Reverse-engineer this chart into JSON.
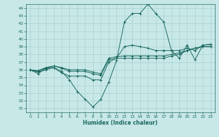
{
  "xlabel": "Humidex (Indice chaleur)",
  "background_color": "#c8e8e8",
  "grid_color": "#a8d0d0",
  "line_color": "#1a6860",
  "xlim": [
    -0.5,
    23.5
  ],
  "ylim": [
    30.5,
    44.5
  ],
  "xticks": [
    0,
    1,
    2,
    3,
    4,
    5,
    6,
    7,
    8,
    9,
    10,
    11,
    12,
    13,
    14,
    15,
    16,
    17,
    18,
    19,
    20,
    21,
    22,
    23
  ],
  "yticks": [
    31,
    32,
    33,
    34,
    35,
    36,
    37,
    38,
    39,
    40,
    41,
    42,
    43,
    44
  ],
  "series": [
    [
      36.0,
      35.5,
      36.2,
      36.3,
      35.8,
      34.7,
      33.2,
      32.2,
      31.2,
      32.2,
      34.4,
      37.2,
      42.2,
      43.3,
      43.3,
      44.5,
      43.3,
      42.2,
      38.5,
      37.5,
      39.2,
      37.3,
      39.2,
      39.3
    ],
    [
      36.0,
      35.7,
      36.0,
      36.3,
      35.6,
      35.2,
      35.2,
      35.2,
      34.7,
      34.7,
      37.0,
      37.5,
      39.0,
      39.2,
      39.0,
      38.8,
      38.5,
      38.5,
      38.5,
      38.5,
      38.8,
      38.5,
      39.2,
      39.3
    ],
    [
      36.0,
      35.8,
      36.2,
      36.5,
      36.2,
      35.8,
      35.8,
      35.8,
      35.5,
      35.3,
      37.3,
      37.5,
      37.5,
      37.5,
      37.5,
      37.5,
      37.5,
      37.5,
      37.8,
      38.0,
      38.5,
      38.8,
      39.0,
      39.0
    ],
    [
      36.0,
      35.9,
      36.3,
      36.5,
      36.3,
      36.0,
      36.0,
      36.0,
      35.7,
      35.5,
      37.5,
      37.7,
      37.8,
      37.8,
      37.8,
      37.8,
      37.8,
      37.8,
      38.0,
      38.2,
      38.5,
      38.8,
      39.0,
      39.0
    ]
  ]
}
